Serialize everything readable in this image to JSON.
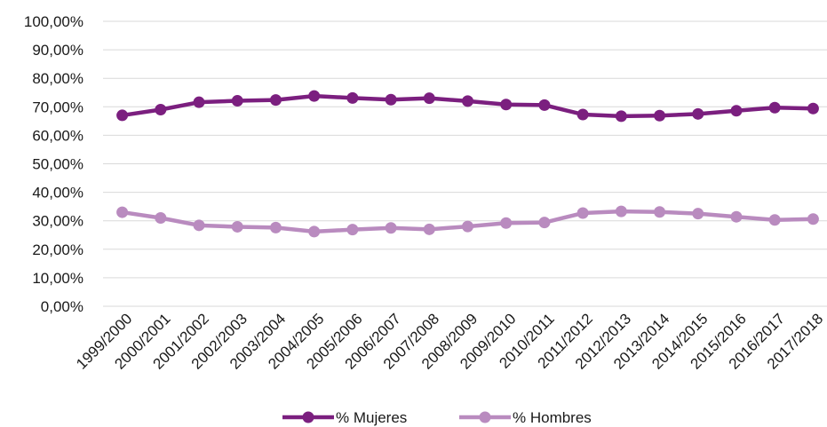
{
  "chart_data": {
    "type": "line",
    "categories": [
      "1999/2000",
      "2000/2001",
      "2001/2002",
      "2002/2003",
      "2003/2004",
      "2004/2005",
      "2005/2006",
      "2006/2007",
      "2007/2008",
      "2008/2009",
      "2009/2010",
      "2010/2011",
      "2011/2012",
      "2012/2013",
      "2013/2014",
      "2014/2015",
      "2015/2016",
      "2016/2017",
      "2017/2018"
    ],
    "series": [
      {
        "name": "% Mujeres",
        "color": "#7b1f7f",
        "values": [
          67.0,
          69.0,
          71.6,
          72.1,
          72.4,
          73.8,
          73.1,
          72.5,
          73.0,
          72.0,
          70.8,
          70.6,
          67.3,
          66.7,
          66.9,
          67.5,
          68.6,
          69.7,
          69.4
        ]
      },
      {
        "name": "% Hombres",
        "color": "#b98bbf",
        "values": [
          33.0,
          31.0,
          28.4,
          27.9,
          27.6,
          26.2,
          26.9,
          27.5,
          27.0,
          28.0,
          29.2,
          29.4,
          32.7,
          33.3,
          33.1,
          32.5,
          31.4,
          30.3,
          30.6
        ]
      }
    ],
    "yticks": [
      "0,00%",
      "10,00%",
      "20,00%",
      "30,00%",
      "40,00%",
      "50,00%",
      "60,00%",
      "70,00%",
      "80,00%",
      "90,00%",
      "100,00%"
    ],
    "ylim": [
      0,
      100
    ],
    "grid": true,
    "legend_position": "bottom"
  }
}
